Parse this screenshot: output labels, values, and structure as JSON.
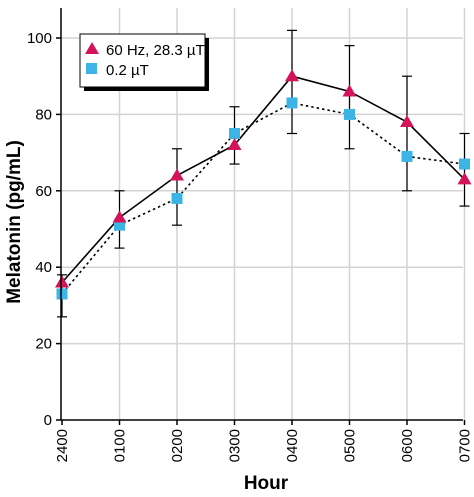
{
  "chart_data": {
    "type": "line",
    "xlabel": "Hour",
    "ylabel": "Melatonin (pg/mL)",
    "categories": [
      "2400",
      "0100",
      "0200",
      "0300",
      "0400",
      "0500",
      "0600",
      "0700"
    ],
    "ylim": [
      0,
      100
    ],
    "yticks": [
      0,
      20,
      40,
      60,
      80,
      100
    ],
    "grid": true,
    "legend_position": "top-left",
    "series": [
      {
        "name": "60 Hz, 28.3 µT",
        "marker": "triangle",
        "line_style": "solid",
        "color": "#d4145a",
        "values": [
          36,
          53,
          64,
          72,
          90,
          86,
          78,
          63
        ],
        "err_high": [
          38,
          60,
          71,
          82,
          102,
          98,
          90,
          75
        ],
        "err_low": [
          27,
          45,
          51,
          67,
          75,
          71,
          60,
          56
        ]
      },
      {
        "name": "0.2 µT",
        "marker": "square",
        "line_style": "dotted",
        "color": "#3cb4e6",
        "values": [
          33,
          51,
          58,
          75,
          83,
          80,
          69,
          67
        ],
        "err_high": null,
        "err_low": null
      }
    ]
  }
}
